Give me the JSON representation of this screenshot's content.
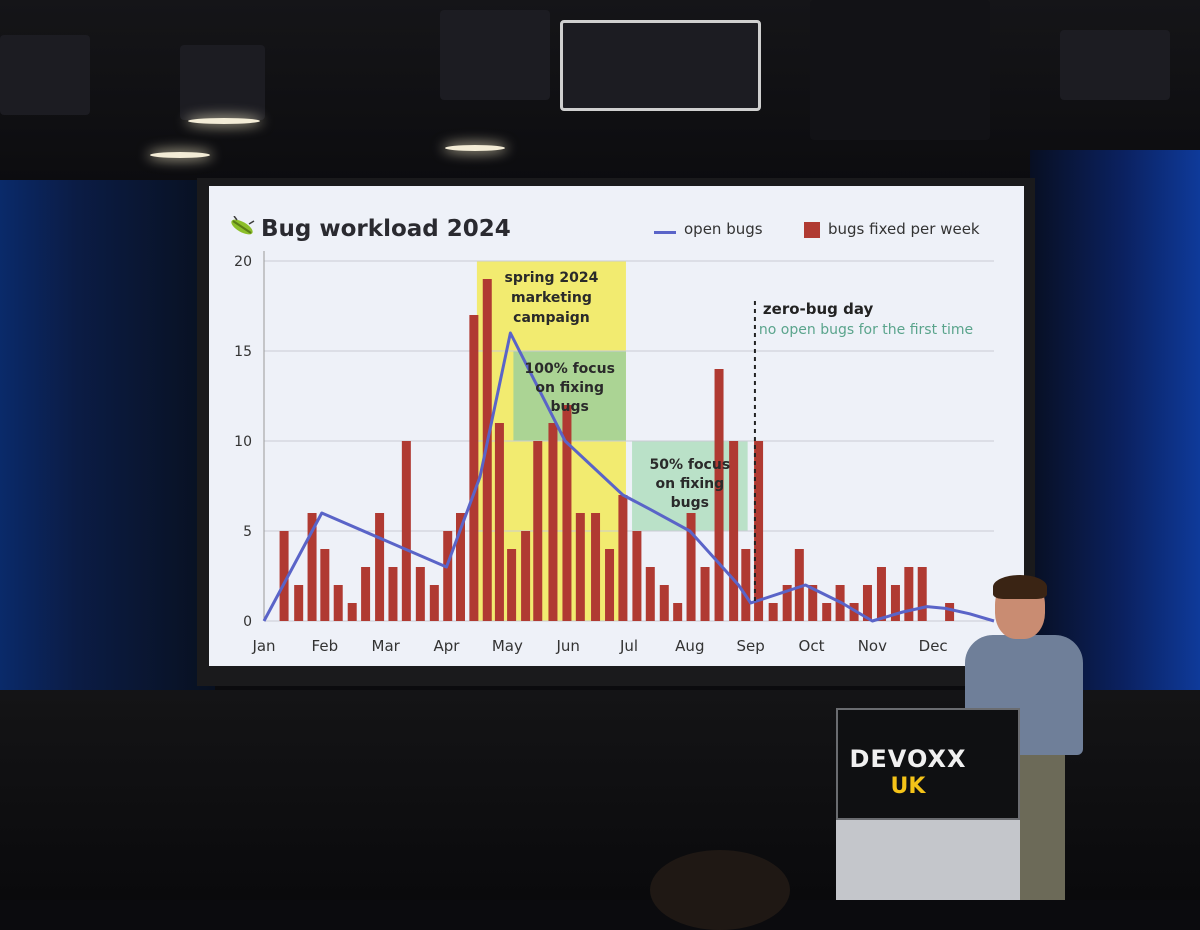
{
  "slide": {
    "title": "Bug workload 2024",
    "legend": {
      "line_label": "open bugs",
      "bar_label": "bugs fixed per week"
    }
  },
  "podium": {
    "brand": "DEVOXX",
    "sub": "UK"
  },
  "colors": {
    "bar": "#b03a32",
    "line": "#5a64c8",
    "campaign_band": "#f2ea58",
    "focus_100_band": "#9fd09a",
    "focus_50_band": "#b0dec0",
    "zero_bug_note": "#5aa48c",
    "slide_bg": "#eef1f8"
  },
  "chart_data": {
    "type": "bar",
    "title": "Bug workload 2024",
    "ylim": [
      0,
      20
    ],
    "yticks": [
      0,
      5,
      10,
      15,
      20
    ],
    "xlim": [
      0,
      12
    ],
    "months": [
      "Jan",
      "Feb",
      "Mar",
      "Apr",
      "May",
      "Jun",
      "Jul",
      "Aug",
      "Sep",
      "Oct",
      "Nov",
      "Dec"
    ],
    "grid": true,
    "legend_position": "top-right",
    "series": [
      {
        "name": "bugs fixed per week",
        "type": "bar",
        "x": [
          0.33,
          0.57,
          0.79,
          1.0,
          1.22,
          1.45,
          1.67,
          1.9,
          2.12,
          2.34,
          2.57,
          2.8,
          3.02,
          3.23,
          3.45,
          3.67,
          3.87,
          4.07,
          4.3,
          4.5,
          4.75,
          4.98,
          5.2,
          5.45,
          5.68,
          5.9,
          6.13,
          6.35,
          6.58,
          6.8,
          7.02,
          7.25,
          7.48,
          7.72,
          7.92,
          8.13,
          8.37,
          8.6,
          8.8,
          9.02,
          9.25,
          9.47,
          9.7,
          9.92,
          10.15,
          10.38,
          10.6,
          10.82,
          11.05,
          11.27,
          11.5
        ],
        "values": [
          5,
          2,
          6,
          4,
          2,
          1,
          3,
          6,
          3,
          10,
          3,
          2,
          5,
          6,
          17,
          19,
          11,
          4,
          5,
          10,
          11,
          12,
          6,
          6,
          4,
          7,
          5,
          3,
          2,
          1,
          6,
          3,
          14,
          10,
          4,
          10,
          1,
          2,
          4,
          2,
          1,
          2,
          1,
          2,
          3,
          2,
          3,
          3,
          0,
          1,
          0
        ]
      },
      {
        "name": "open bugs",
        "type": "line",
        "x": [
          0,
          0.95,
          3.0,
          3.55,
          4.05,
          4.95,
          5.9,
          6.35,
          7.0,
          7.8,
          8.0,
          8.9,
          9.5,
          10.0,
          10.5,
          10.9,
          11.2,
          11.6,
          12.0
        ],
        "values": [
          0,
          6,
          3,
          8,
          16,
          10,
          7,
          6.2,
          5,
          2,
          1,
          2,
          1,
          0,
          0.5,
          0.8,
          0.7,
          0.4,
          0
        ]
      }
    ],
    "annotations": [
      {
        "label": "spring 2024 marketing campaign",
        "lines": [
          "spring 2024",
          "marketing",
          "campaign"
        ],
        "x0": 3.5,
        "x1": 5.95,
        "y0": 0,
        "y1": 20,
        "color_key": "campaign_band"
      },
      {
        "label": "100% focus on fixing bugs",
        "lines": [
          "100% focus",
          "on fixing",
          "bugs"
        ],
        "x0": 4.1,
        "x1": 5.95,
        "y0": 10,
        "y1": 15,
        "color_key": "focus_100_band"
      },
      {
        "label": "50% focus on fixing bugs",
        "lines": [
          "50% focus",
          "on fixing",
          "bugs"
        ],
        "x0": 6.05,
        "x1": 7.95,
        "y0": 5,
        "y1": 10,
        "color_key": "focus_50_band"
      },
      {
        "label": "zero-bug day",
        "sublabel": "no open bugs for the first time",
        "x": 8.07
      }
    ]
  }
}
